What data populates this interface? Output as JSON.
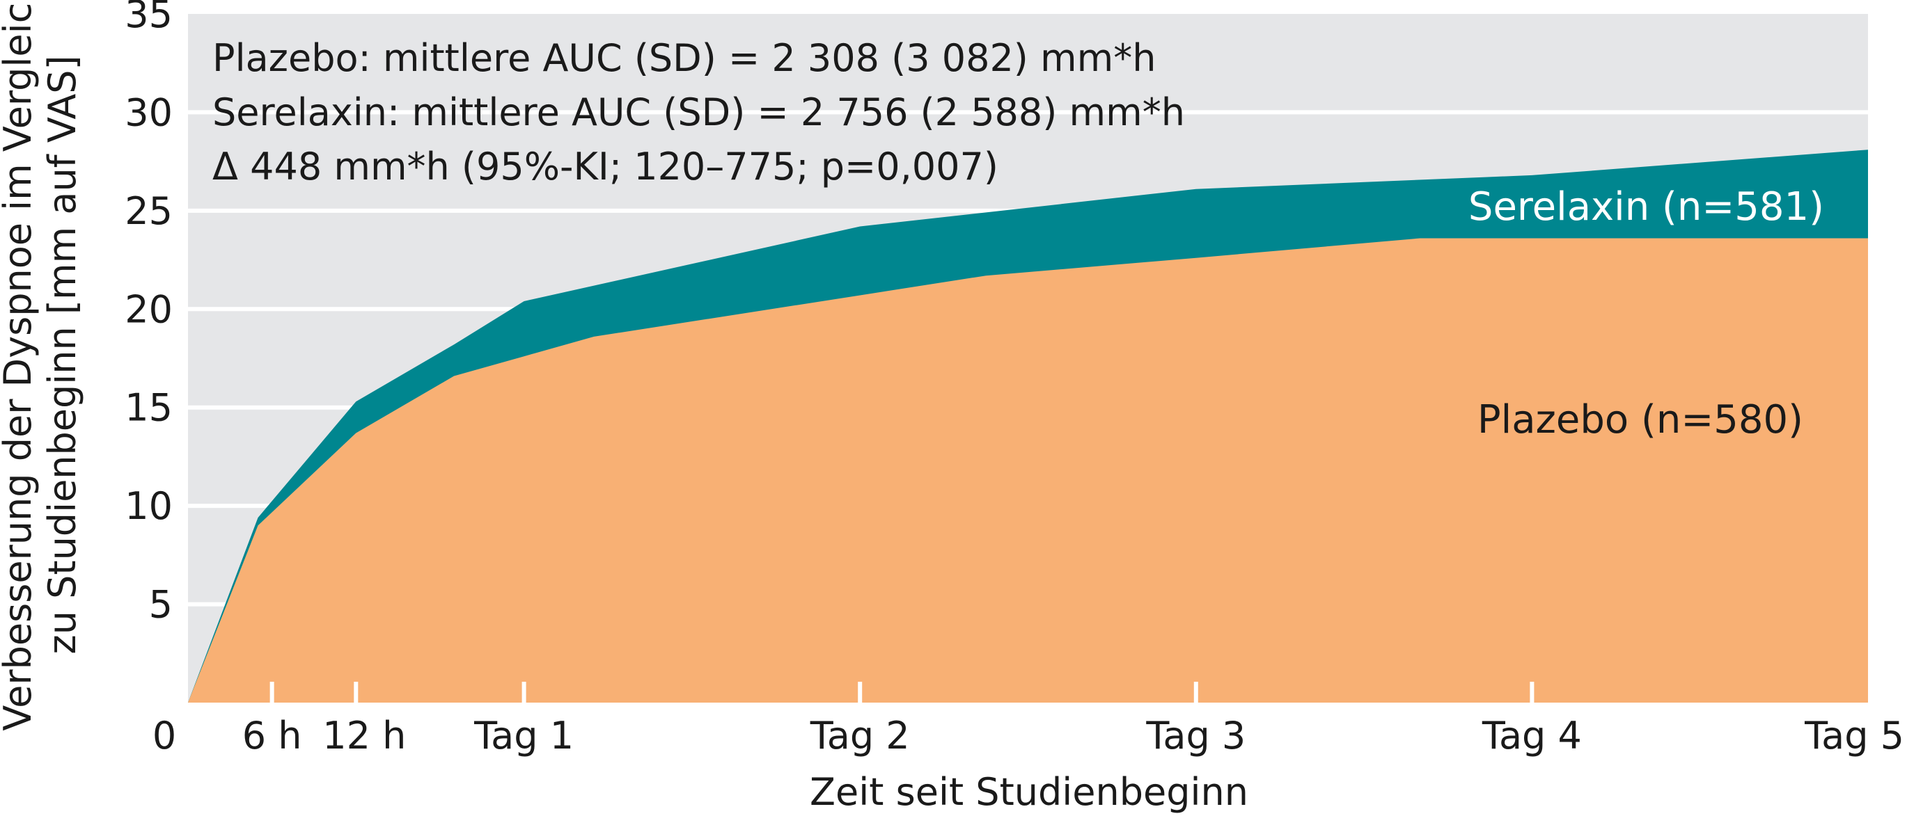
{
  "chart_data": {
    "type": "area",
    "stacked": false,
    "xlabel": "Zeit seit Studienbeginn",
    "ylabel_lines": [
      "Verbesserung der Dyspnoe im Vergleich",
      "zu Studienbeginn [mm auf VAS]"
    ],
    "ylim": [
      0,
      35
    ],
    "xlim_hours": [
      0,
      120
    ],
    "y_ticks": [
      {
        "value": 35,
        "label": "35"
      },
      {
        "value": 30,
        "label": "30"
      },
      {
        "value": 25,
        "label": "25"
      },
      {
        "value": 20,
        "label": "20"
      },
      {
        "value": 15,
        "label": "15"
      },
      {
        "value": 10,
        "label": "10"
      },
      {
        "value": 5,
        "label": "5"
      }
    ],
    "x_origin_label": "0",
    "x_ticks": [
      {
        "hours": 6,
        "label": "6 h"
      },
      {
        "hours": 12,
        "label": "12 h"
      },
      {
        "hours": 24,
        "label": "Tag 1"
      },
      {
        "hours": 48,
        "label": "Tag 2"
      },
      {
        "hours": 72,
        "label": "Tag 3"
      },
      {
        "hours": 96,
        "label": "Tag 4"
      },
      {
        "hours": 120,
        "label": "Tag 5"
      }
    ],
    "series": [
      {
        "name": "Serelaxin (n=581)",
        "color": "#00868f",
        "points": [
          [
            0,
            0
          ],
          [
            5,
            9.4
          ],
          [
            12,
            15.3
          ],
          [
            19,
            18.2
          ],
          [
            24,
            20.4
          ],
          [
            48,
            24.2
          ],
          [
            72,
            26.1
          ],
          [
            96,
            26.8
          ],
          [
            120,
            28.1
          ]
        ]
      },
      {
        "name": "Plazebo (n=580)",
        "color": "#f8b074",
        "points": [
          [
            0,
            0
          ],
          [
            5,
            9.0
          ],
          [
            12,
            13.7
          ],
          [
            19,
            16.6
          ],
          [
            24,
            17.6
          ],
          [
            29,
            18.6
          ],
          [
            48,
            20.7
          ],
          [
            57,
            21.7
          ],
          [
            72,
            22.6
          ],
          [
            88,
            23.6
          ],
          [
            120,
            23.6
          ]
        ]
      }
    ],
    "annotations": [
      "Plazebo: mittlere AUC (SD) = 2 308 (3 082) mm*h",
      "Serelaxin: mittlere AUC (SD) = 2 756 (2 588) mm*h",
      "Δ 448 mm*h (95%-KI; 120–775; p=0,007)"
    ],
    "colors": {
      "plot_background": "#e5e6e8",
      "gridline": "#ffffff",
      "serelaxin": "#00868f",
      "plazebo": "#f8b074",
      "serelaxin_label_text": "#ffffff",
      "text": "#1a1a1a"
    },
    "grid": true
  }
}
